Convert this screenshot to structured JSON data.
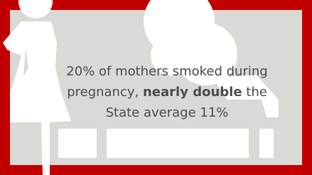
{
  "message": {
    "lead": "20% of mothers smoked during pregnancy,",
    "emphasis": "nearly double",
    "tail": "the State average 11%"
  }
}
